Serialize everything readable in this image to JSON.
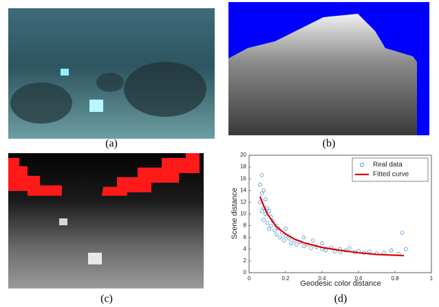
{
  "captions": [
    "(a)",
    "(b)",
    "(c)",
    "(d)"
  ],
  "chart_data": {
    "type": "scatter",
    "xlabel": "Geodesic color distance",
    "ylabel": "Scene distance",
    "xlim": [
      0,
      1
    ],
    "xticks": [
      0,
      0.2,
      0.4,
      0.6,
      0.8,
      1
    ],
    "ylim": [
      0,
      20
    ],
    "yticks": [
      0,
      2,
      4,
      6,
      8,
      10,
      12,
      14,
      16,
      18,
      20
    ],
    "legend": "upper right",
    "series": [
      {
        "name": "Real data",
        "type": "scatter",
        "color": "#2b7fc0",
        "x": [
          0.06,
          0.06,
          0.07,
          0.07,
          0.07,
          0.08,
          0.08,
          0.08,
          0.09,
          0.09,
          0.1,
          0.1,
          0.11,
          0.11,
          0.12,
          0.12,
          0.13,
          0.14,
          0.15,
          0.15,
          0.16,
          0.17,
          0.18,
          0.19,
          0.2,
          0.2,
          0.22,
          0.23,
          0.25,
          0.26,
          0.28,
          0.3,
          0.3,
          0.32,
          0.34,
          0.35,
          0.37,
          0.4,
          0.4,
          0.42,
          0.45,
          0.47,
          0.5,
          0.5,
          0.53,
          0.55,
          0.58,
          0.6,
          0.63,
          0.66,
          0.7,
          0.74,
          0.78,
          0.82,
          0.84,
          0.86
        ],
        "values": [
          12,
          15,
          16.6,
          13.5,
          10.5,
          14,
          11,
          9,
          12.5,
          10,
          11,
          8.5,
          10.5,
          7.5,
          9.5,
          8,
          8.8,
          7.2,
          8,
          6.5,
          7.5,
          6,
          6.8,
          5.5,
          6.2,
          7.5,
          5.8,
          5,
          5.5,
          4.8,
          5.2,
          4.5,
          6,
          4.8,
          4.2,
          5.5,
          4.4,
          4,
          5,
          3.8,
          4.3,
          3.6,
          4,
          3.5,
          3.8,
          4.2,
          3.5,
          3.7,
          3.4,
          3.6,
          3.3,
          3.4,
          3.8,
          3.2,
          6.8,
          4
        ]
      },
      {
        "name": "Fitted curve",
        "type": "line",
        "color": "#e00000",
        "x": [
          0.06,
          0.08,
          0.1,
          0.15,
          0.2,
          0.25,
          0.3,
          0.4,
          0.5,
          0.6,
          0.7,
          0.85
        ],
        "values": [
          13,
          11.4,
          10,
          7.8,
          6.6,
          5.7,
          5.1,
          4.3,
          3.8,
          3.4,
          3.1,
          2.9
        ]
      }
    ]
  }
}
